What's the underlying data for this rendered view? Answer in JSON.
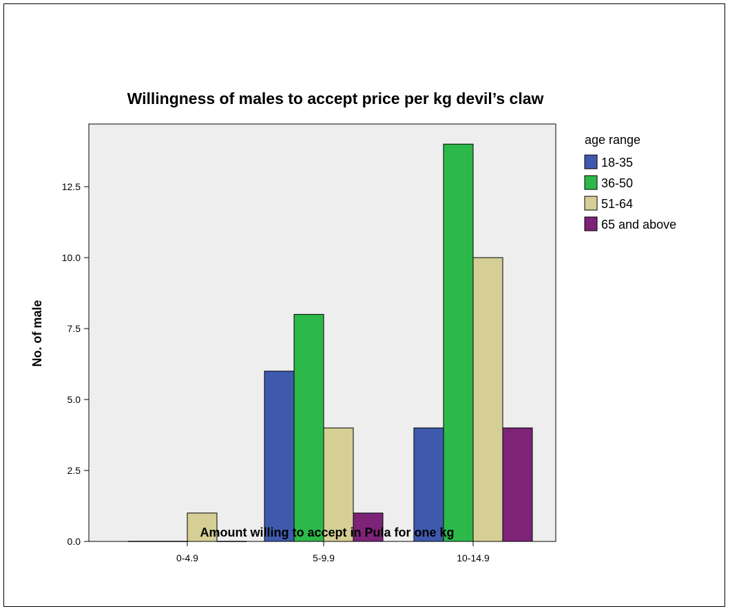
{
  "chart_data": {
    "type": "bar",
    "title": "Willingness of males to accept price per kg devil’s claw",
    "xlabel": "Amount willing to accept in Pula for one kg",
    "ylabel": "No. of male",
    "categories": [
      "0-4.9",
      "5-9.9",
      "10-14.9"
    ],
    "ylim": [
      0,
      15
    ],
    "yticks": [
      "0.0",
      "2.5",
      "5.0",
      "7.5",
      "10.0",
      "12.5"
    ],
    "legend_title": "age range",
    "legend_position": "right",
    "grid": false,
    "series": [
      {
        "name": "18-35",
        "color": "#3f5aad",
        "values": [
          0,
          6,
          4
        ]
      },
      {
        "name": "36-50",
        "color": "#2db84a",
        "values": [
          0,
          8,
          14
        ]
      },
      {
        "name": "51-64",
        "color": "#d5cf96",
        "values": [
          1,
          4,
          10
        ]
      },
      {
        "name": "65 and above",
        "color": "#7e2478",
        "values": [
          0,
          1,
          4
        ]
      }
    ],
    "plot_background": "#eeeeee"
  }
}
